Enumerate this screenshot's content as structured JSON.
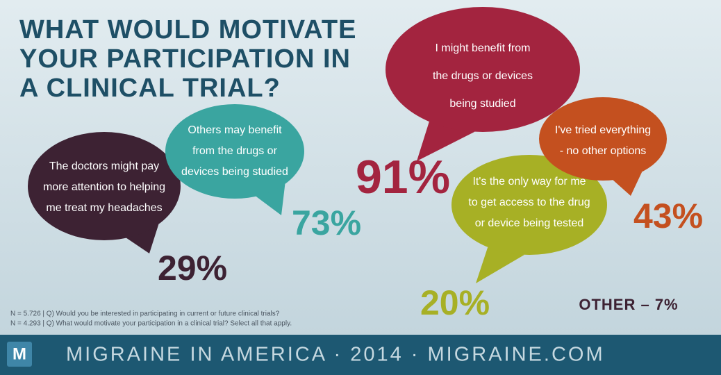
{
  "title": [
    "WHAT WOULD MOTIVATE",
    "YOUR PARTICIPATION IN",
    "A CLINICAL TRIAL?"
  ],
  "bubbles": [
    {
      "lines": [
        "The doctors might pay",
        "more attention to helping",
        "me treat my headaches"
      ],
      "percent": "29%"
    },
    {
      "lines": [
        "Others may benefit",
        "from the drugs or",
        "devices being studied"
      ],
      "percent": "73%"
    },
    {
      "lines": [
        "I might benefit from",
        "the drugs or devices",
        "being studied"
      ],
      "percent": "91%"
    },
    {
      "lines": [
        "It's the only way for me",
        "to get access to the drug",
        "or device being tested"
      ],
      "percent": "20%"
    },
    {
      "lines": [
        "I've tried everything",
        "- no other options"
      ],
      "percent": "43%"
    }
  ],
  "other": "OTHER – 7%",
  "notes": [
    "N = 5.726  |  Q) Would you be interested in participating in current or future clinical trials?",
    "N = 4.293  |  Q) What would motivate your participation in a clinical trial? Select all that apply."
  ],
  "footer": {
    "logo": "M",
    "text": "MIGRAINE IN AMERICA · 2014 · MIGRAINE.COM"
  }
}
